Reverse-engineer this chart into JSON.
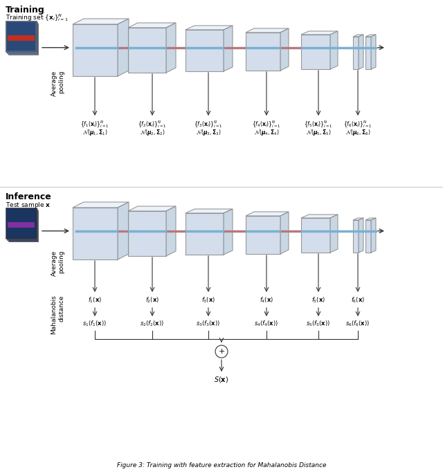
{
  "title": "Figure 3: Training with feature extraction for Mahalanobis Distance",
  "fig_width": 6.4,
  "fig_height": 6.85,
  "bg_color": "#ffffff",
  "training_label": "Training",
  "inference_label": "Inference",
  "training_sublabel": "Training set $\\{\\mathbf{x}_i\\}_{i=1}^N$",
  "inference_sublabel": "Test sample $\\mathbf{x}$",
  "avg_pool_label": "Average\\nPooling",
  "avg_pool_label2": "Average\\nPooling",
  "mahal_label": "Mahalanobis\\ndistance",
  "train_feat_labels": [
    "$\\{f_1(\\mathbf{x}_i)\\}_{i=1}^N$",
    "$\\{f_2(\\mathbf{x}_i)\\}_{i=1}^N$",
    "$\\{f_3(\\mathbf{x}_i)\\}_{i=1}^N$",
    "$\\{f_4(\\mathbf{x}_i)\\}_{i=1}^N$",
    "$\\{f_5(\\mathbf{x}_i)\\}_{i=1}^N$",
    "$\\{f_6(\\mathbf{x}_i)\\}_{i=1}^N$"
  ],
  "train_gauss_labels": [
    "$\\mathcal{N}(\\boldsymbol{\\mu}_1, \\boldsymbol{\\Sigma}_1)$",
    "$\\mathcal{N}(\\boldsymbol{\\mu}_2, \\boldsymbol{\\Sigma}_2)$",
    "$\\mathcal{N}(\\boldsymbol{\\mu}_3, \\boldsymbol{\\Sigma}_3)$",
    "$\\mathcal{N}(\\boldsymbol{\\mu}_4, \\boldsymbol{\\Sigma}_4)$",
    "$\\mathcal{N}(\\boldsymbol{\\mu}_5, \\boldsymbol{\\Sigma}_5)$",
    "$\\mathcal{N}(\\boldsymbol{\\mu}_6, \\boldsymbol{\\Sigma}_6)$"
  ],
  "infer_feat_labels": [
    "$f_1(\\mathbf{x})$",
    "$f_2(\\mathbf{x})$",
    "$f_3(\\mathbf{x})$",
    "$f_4(\\mathbf{x})$",
    "$f_5(\\mathbf{x})$",
    "$f_6(\\mathbf{x})$"
  ],
  "infer_score_labels": [
    "$s_1(f_1(\\mathbf{x}))$",
    "$s_2(f_2(\\mathbf{x}))$",
    "$s_3(f_3(\\mathbf{x}))$",
    "$s_4(f_4(\\mathbf{x}))$",
    "$s_5(f_5(\\mathbf{x}))$",
    "$s_6(f_6(\\mathbf{x}))$"
  ],
  "sum_label": "$S(\\mathbf{x})$",
  "plus_label": "$+$",
  "caption": "Figure 3: Training with feature extraction for Mahalanobis Distance",
  "block_color": "#c8d8e8",
  "block_edge_color": "#888888",
  "arrow_color": "#333333",
  "line_color": "#aaaaaa",
  "blue_line_color": "#7ab0d4",
  "red_line_color": "#c87070"
}
